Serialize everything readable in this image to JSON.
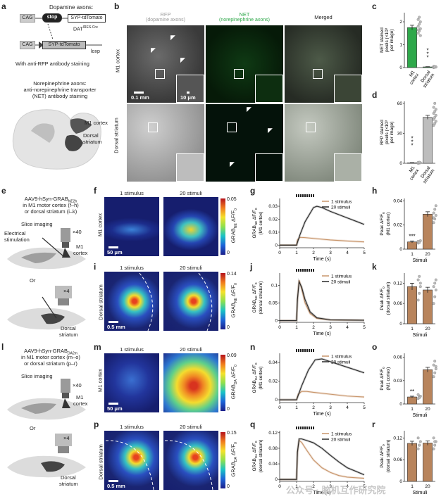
{
  "panel_letters": [
    "a",
    "b",
    "c",
    "d",
    "e",
    "f",
    "g",
    "h",
    "i",
    "j",
    "k",
    "l",
    "m",
    "n",
    "o",
    "p",
    "q",
    "r"
  ],
  "panel_a": {
    "title": "Dopamine axons:",
    "cag1": "CAG",
    "stop": "stop",
    "construct1": "SYP-tdTomato",
    "dat": "DAT",
    "dat_sup": "IRES-Cre",
    "cag2": "CAG",
    "construct2": "SYP-tdTomato",
    "loxp": "loxp",
    "stain1": "With anti-RFP antibody staining",
    "ne_title": "Norepinephrine axons:",
    "ne_line2": "anti-norepinephrine transporter",
    "ne_line3": "(NET) antibody staining",
    "region1": "M1 cortex",
    "region2": "Dorsal",
    "region2b": "striatum"
  },
  "panel_b": {
    "col1": "RFP",
    "col1_sub": "(dopamine axons)",
    "col2": "NET",
    "col2_sub": "(norepinephrine axons)",
    "col3": "Merged",
    "row1": "M1 cortex",
    "row2": "Dorsal striatum",
    "scale1": "0.1 mm",
    "scale2": "10 μm"
  },
  "panel_e": {
    "line1": "AAV9-hSyn-GRAB",
    "line1_sub": "NE2h",
    "line2": "in M1 motor cortex (f–h)",
    "line3": "or dorsal striatum (i–k)",
    "slice": "Slice imaging",
    "elec1": "Electrical",
    "elec2": "stimulation",
    "obj40": "×40",
    "m1a": "M1",
    "m1b": "cortex",
    "or": "Or",
    "obj4": "×4",
    "ds1": "Dorsal",
    "ds2": "striatum"
  },
  "panel_l": {
    "line1": "AAV9-hSyn-GRAB",
    "line1_sub": "DA2m",
    "line2": "in M1 motor cortex (m–o)",
    "line3": "or dorsal striatum (p–r)",
    "slice": "Slice imaging",
    "obj40": "×40",
    "m1a": "M1",
    "m1b": "cortex",
    "or": "Or",
    "obj4": "×4",
    "ds1": "Dorsal",
    "ds2": "striatum"
  },
  "heatmaps": {
    "col_1": "1 stimulus",
    "col_20": "20 stimuli",
    "f": {
      "side": "M1 cortex",
      "scale": "50 μm",
      "cb_top": "0.05",
      "cb_bottom": "0",
      "cb_label": "GRAB",
      "cb_sub": "NE",
      "cb_tail": " ΔF/F",
      "cb_f0": "0"
    },
    "i": {
      "side": "Dorsal striatum",
      "scale": "0.5 mm",
      "cb_top": "0.14",
      "cb_bottom": "0",
      "cb_label": "GRAB",
      "cb_sub": "NE",
      "cb_tail": " ΔF/F",
      "cb_f0": "0"
    },
    "m": {
      "side": "M1 cortex",
      "scale": "50 μm",
      "cb_top": "0.09",
      "cb_bottom": "0",
      "cb_label": "GRAB",
      "cb_sub": "DA",
      "cb_tail": " ΔF/F",
      "cb_f0": "0"
    },
    "p": {
      "side": "Dorsal striatum",
      "scale": "0.5 mm",
      "cb_top": "0.15",
      "cb_bottom": "0",
      "cb_label": "GRAB",
      "cb_sub": "DA",
      "cb_tail": " ΔF/F",
      "cb_f0": "0"
    }
  },
  "colors": {
    "stim1": "#c8956a",
    "stim20": "#2b2b2b",
    "bar_green": "#2ea84a",
    "bar_grey": "#d9d9d9",
    "bar_brown": "#b8845c"
  },
  "chart_data": [
    {
      "panel": "c",
      "type": "bar",
      "categories": [
        "M1 cortex",
        "Dorsal striatum"
      ],
      "values": [
        1.75,
        0.03
      ],
      "errors": [
        0.1,
        0.01
      ],
      "points": [
        [
          1.5,
          1.6,
          1.7,
          1.8,
          1.9,
          2.0,
          2.1,
          2.2,
          1.4,
          1.65
        ],
        [
          0.0,
          0.02,
          0.03,
          0.05,
          0.04,
          0.02,
          0.01,
          0.03
        ]
      ],
      "ylabel": "NET stained pixels (×10³ per image)",
      "ylabel_lines": [
        "NET stained",
        "pixels (×10³",
        "per image)"
      ],
      "yticks": [
        0,
        1,
        2
      ],
      "ylim": [
        0,
        2.4
      ],
      "significance": "***",
      "colors": [
        "#2ea84a",
        "#2ea84a"
      ]
    },
    {
      "panel": "d",
      "type": "bar",
      "categories": [
        "M1 cortex",
        "Dorsal striatum"
      ],
      "values": [
        0.5,
        46
      ],
      "errors": [
        0.2,
        2
      ],
      "points": [
        [
          0,
          0.3,
          0.5,
          0.8,
          1
        ],
        [
          38,
          40,
          42,
          44,
          46,
          48,
          50,
          52,
          54,
          56,
          60
        ]
      ],
      "ylabel": "RFP stained pixels (×10³ per image)",
      "ylabel_lines": [
        "RFP stained",
        "pixels (×10³",
        "per image)"
      ],
      "yticks": [
        0,
        30,
        60
      ],
      "ylim": [
        0,
        62
      ],
      "significance": "***",
      "colors": [
        "#bdbdbd",
        "#bdbdbd"
      ]
    },
    {
      "panel": "g",
      "type": "line",
      "xlabel": "Time (s)",
      "xticks": [
        0,
        1,
        2,
        3,
        4,
        5
      ],
      "xlim": [
        0,
        5
      ],
      "ylabel": "GRAB ΔF/F (M1 cortex)",
      "ylabel_lines": [
        "GRAB",
        "NE",
        " ΔF/F",
        "0",
        "(M1 cortex)"
      ],
      "yticks": [
        0,
        0.01,
        0.02,
        0.03
      ],
      "ylim": [
        -0.002,
        0.036
      ],
      "legend": [
        "1 stimulus",
        "20 stimuli"
      ],
      "stim_start": 1,
      "stim_end": 2,
      "series": [
        {
          "name": "1 stimulus",
          "x": [
            0,
            1,
            1.05,
            1.2,
            1.5,
            2,
            3,
            4,
            5
          ],
          "y": [
            0,
            0,
            0.004,
            0.006,
            0.0058,
            0.0052,
            0.004,
            0.0032,
            0.0025
          ]
        },
        {
          "name": "20 stimuli",
          "x": [
            0,
            1,
            1.2,
            1.5,
            2,
            2.2,
            2.5,
            3,
            4,
            5
          ],
          "y": [
            0,
            0,
            0.008,
            0.018,
            0.029,
            0.03,
            0.029,
            0.026,
            0.021,
            0.016
          ]
        }
      ]
    },
    {
      "panel": "j",
      "type": "line",
      "xlabel": "Time (s)",
      "xticks": [
        0,
        1,
        2,
        3,
        4,
        5
      ],
      "xlim": [
        0,
        5
      ],
      "ylabel": "GRAB ΔF/F (dorsal striatum)",
      "ylabel_lines": [
        "GRAB",
        "NE",
        " ΔF/F",
        "0",
        "(dorsal striatum)"
      ],
      "yticks": [
        0,
        0.05,
        0.1
      ],
      "ylim": [
        -0.005,
        0.135
      ],
      "legend": [
        "1 stimulus",
        "20 stimuli"
      ],
      "stim_start": 1,
      "stim_end": 2,
      "series": [
        {
          "name": "1 stimulus",
          "x": [
            0,
            1,
            1.05,
            1.15,
            1.3,
            1.5,
            1.8,
            2.2,
            3,
            5
          ],
          "y": [
            0,
            0,
            0.06,
            0.115,
            0.09,
            0.05,
            0.02,
            0.006,
            0.002,
            0.001
          ]
        },
        {
          "name": "20 stimuli",
          "x": [
            0,
            1,
            1.05,
            1.15,
            1.3,
            1.5,
            1.8,
            2.2,
            3,
            5
          ],
          "y": [
            0,
            0,
            0.06,
            0.11,
            0.095,
            0.06,
            0.025,
            0.008,
            0.002,
            0.001
          ]
        }
      ]
    },
    {
      "panel": "n",
      "type": "line",
      "xlabel": "Time (s)",
      "xticks": [
        0,
        1,
        2,
        3,
        4,
        5
      ],
      "xlim": [
        0,
        5
      ],
      "ylabel": "GRAB ΔF/F (M1 cortex)",
      "ylabel_lines": [
        "GRAB",
        "DA",
        " ΔF/F",
        "0",
        "(M1 cortex)"
      ],
      "yticks": [
        0,
        0.02,
        0.04
      ],
      "ylim": [
        -0.003,
        0.05
      ],
      "legend": [
        "1 stimulus",
        "20 stimuli"
      ],
      "stim_start": 1,
      "stim_end": 2,
      "series": [
        {
          "name": "1 stimulus",
          "x": [
            0,
            1,
            1.1,
            1.3,
            1.6,
            2,
            3,
            4,
            5
          ],
          "y": [
            0,
            0,
            0.006,
            0.009,
            0.009,
            0.008,
            0.006,
            0.004,
            0.003
          ]
        },
        {
          "name": "20 stimuli",
          "x": [
            0,
            1,
            1.3,
            1.7,
            2.1,
            2.5,
            3,
            4,
            5
          ],
          "y": [
            0,
            0,
            0.015,
            0.032,
            0.043,
            0.044,
            0.041,
            0.035,
            0.029
          ]
        }
      ]
    },
    {
      "panel": "q",
      "type": "line",
      "xlabel": "Time (s)",
      "xticks": [
        0,
        1,
        2,
        3,
        4,
        5
      ],
      "xlim": [
        0,
        5
      ],
      "ylabel": "GRAB ΔF/F (dorsal striatum)",
      "ylabel_lines": [
        "GRAB",
        "DA",
        " ΔF/F",
        "0",
        "(dorsal striatum)"
      ],
      "yticks": [
        0,
        0.04,
        0.08,
        0.12
      ],
      "ylim": [
        -0.005,
        0.125
      ],
      "legend": [
        "1 stimulus",
        "20 stimuli"
      ],
      "stim_start": 1,
      "stim_end": 2,
      "series": [
        {
          "name": "1 stimulus",
          "x": [
            0,
            1,
            1.05,
            1.15,
            1.3,
            1.6,
            2,
            2.5,
            3,
            3.5,
            4,
            5
          ],
          "y": [
            0,
            0,
            0.07,
            0.1,
            0.095,
            0.075,
            0.05,
            0.03,
            0.018,
            0.01,
            0.006,
            0.003
          ]
        },
        {
          "name": "20 stimuli",
          "x": [
            0,
            1,
            1.05,
            1.15,
            1.3,
            1.6,
            2,
            2.5,
            3,
            3.5,
            4,
            5
          ],
          "y": [
            0,
            0,
            0.07,
            0.104,
            0.104,
            0.1,
            0.094,
            0.08,
            0.062,
            0.045,
            0.03,
            0.012
          ]
        }
      ]
    },
    {
      "panel": "h",
      "type": "bar",
      "categories": [
        "1",
        "20"
      ],
      "values": [
        0.006,
        0.029
      ],
      "errors": [
        0.0008,
        0.002
      ],
      "points": [
        [
          0.005,
          0.006,
          0.007,
          0.0065,
          0.0055
        ],
        [
          0.022,
          0.025,
          0.028,
          0.03,
          0.033,
          0.036,
          0.026
        ]
      ],
      "xlabel": "Stimuli",
      "ylabel": "Peak ΔF/F (M1 cortex)",
      "ylabel_lines": [
        "Peak ΔF/F",
        "0",
        "(M1 cortex)"
      ],
      "yticks": [
        0,
        0.02,
        0.04
      ],
      "ylim": [
        0,
        0.042
      ],
      "significance": "***"
    },
    {
      "panel": "k",
      "type": "bar",
      "categories": [
        "1",
        "20"
      ],
      "values": [
        0.11,
        0.1
      ],
      "errors": [
        0.01,
        0.008
      ],
      "points": [
        [
          0.07,
          0.09,
          0.11,
          0.13,
          0.14,
          0.12
        ],
        [
          0.06,
          0.08,
          0.1,
          0.11,
          0.12,
          0.13
        ]
      ],
      "xlabel": "Stimuli",
      "ylabel": "Peak ΔF/F (dorsal striatum)",
      "ylabel_lines": [
        "Peak ΔF/F",
        "0",
        "(dorsal striatum)"
      ],
      "yticks": [
        0,
        0.06,
        0.12
      ],
      "ylim": [
        0,
        0.15
      ]
    },
    {
      "panel": "o",
      "type": "bar",
      "categories": [
        "1",
        "20"
      ],
      "values": [
        0.009,
        0.044
      ],
      "errors": [
        0.001,
        0.003
      ],
      "points": [
        [
          0.007,
          0.009,
          0.01,
          0.012,
          0.008
        ],
        [
          0.035,
          0.04,
          0.045,
          0.05,
          0.055,
          0.048
        ]
      ],
      "xlabel": "Stimuli",
      "ylabel": "Peak ΔF/F (M1 cortex)",
      "ylabel_lines": [
        "Peak ΔF/F",
        "0",
        "(M1 cortex)"
      ],
      "yticks": [
        0,
        0.03,
        0.06
      ],
      "ylim": [
        0,
        0.065
      ],
      "significance": "**"
    },
    {
      "panel": "r",
      "type": "bar",
      "categories": [
        "1",
        "20"
      ],
      "values": [
        0.105,
        0.106
      ],
      "errors": [
        0.006,
        0.006
      ],
      "points": [
        [
          0.09,
          0.1,
          0.11,
          0.12,
          0.1
        ],
        [
          0.09,
          0.1,
          0.11,
          0.12,
          0.11
        ]
      ],
      "xlabel": "Stimuli",
      "ylabel": "Peak ΔF/F (dorsal striatum)",
      "ylabel_lines": [
        "Peak ΔF/F",
        "0",
        "(dorsal striatum)"
      ],
      "yticks": [
        0,
        0.06,
        0.12
      ],
      "ylim": [
        0,
        0.14
      ]
    }
  ],
  "watermark": "公众号 · 脑机互作研究院"
}
